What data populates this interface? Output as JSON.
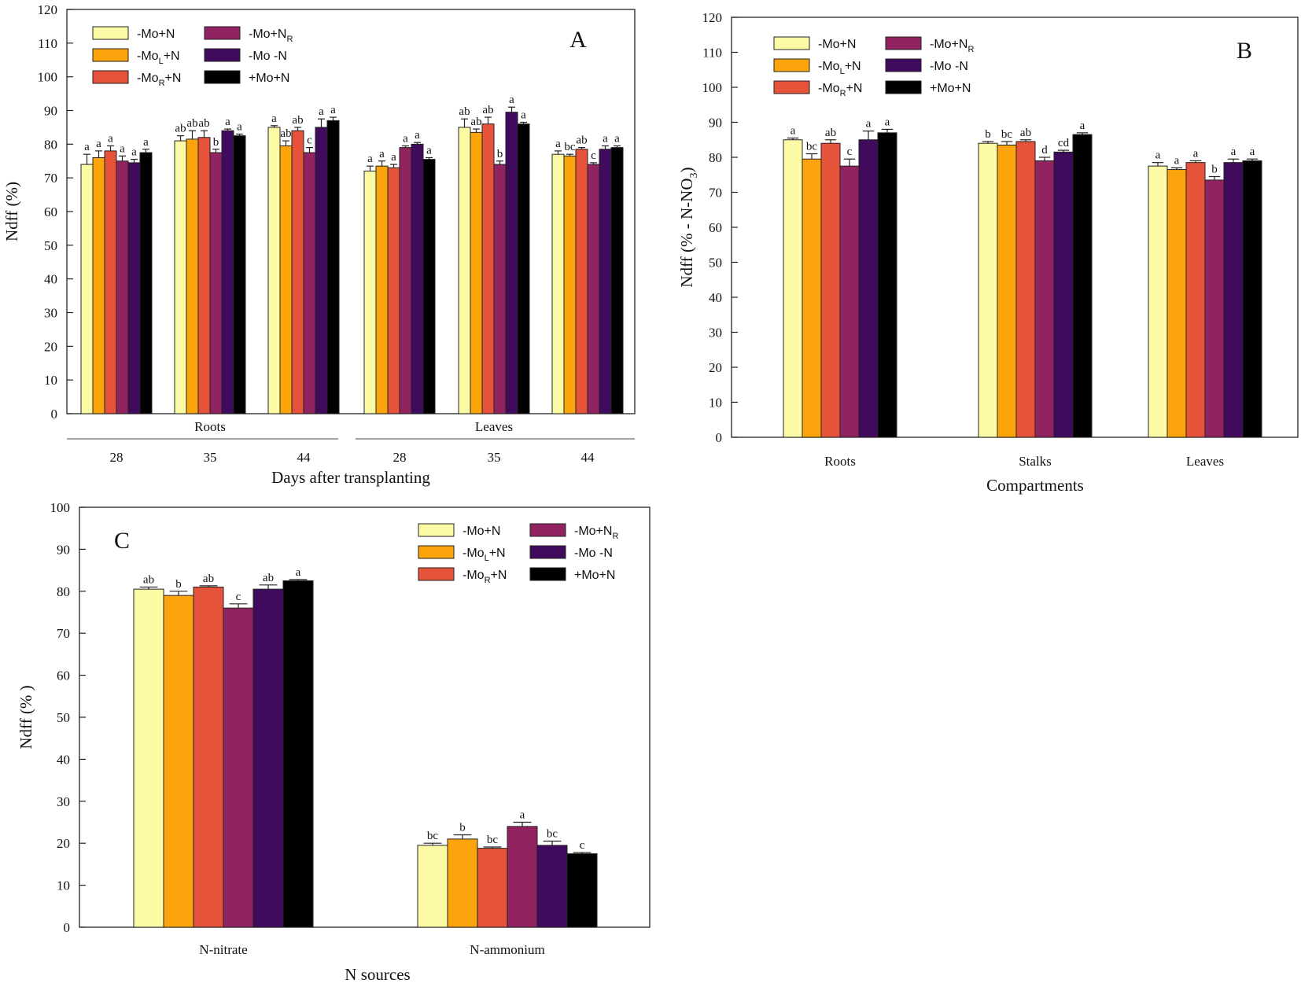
{
  "series_legend": [
    {
      "name": "-Mo+N",
      "base": "-Mo+N",
      "sub": "",
      "tail": "",
      "color": "#fdfaa6"
    },
    {
      "name": "-MoL+N",
      "base": "-Mo",
      "sub": "L",
      "tail": "+N",
      "color": "#fba40b"
    },
    {
      "name": "-MoR+N",
      "base": "-Mo",
      "sub": "R",
      "tail": "+N",
      "color": "#e4533a"
    },
    {
      "name": "-Mo+NR",
      "base": "-Mo+N",
      "sub": "R",
      "tail": "",
      "color": "#912361"
    },
    {
      "name": "-Mo -N",
      "base": "-Mo -N",
      "sub": "",
      "tail": "",
      "color": "#400a5d"
    },
    {
      "name": "+Mo+N",
      "base": "+Mo+N",
      "sub": "",
      "tail": "",
      "color": "#000000"
    }
  ],
  "chart_data": [
    {
      "panel": "A",
      "type": "bar",
      "xlabel": "Days after transplanting",
      "ylabel": "Ndff (%)",
      "ylim": [
        0,
        120
      ],
      "yticks": [
        0,
        10,
        20,
        30,
        40,
        50,
        60,
        70,
        80,
        90,
        100,
        110,
        120
      ],
      "outer_groups": [
        "Roots",
        "Leaves"
      ],
      "categories": [
        "28",
        "35",
        "44",
        "28",
        "35",
        "44"
      ],
      "series": [
        {
          "name": "-Mo+N",
          "values": [
            74,
            81,
            85,
            72,
            85,
            77
          ],
          "errors": [
            3,
            1.5,
            0.5,
            1.5,
            2.5,
            1
          ],
          "letters": [
            "a",
            "ab",
            "a",
            "a",
            "ab",
            "a"
          ]
        },
        {
          "name": "-MoL+N",
          "values": [
            76,
            81.5,
            79.5,
            73.5,
            83.5,
            76.5
          ],
          "errors": [
            2,
            2.5,
            1.5,
            1.5,
            1,
            0.5
          ],
          "letters": [
            "a",
            "ab",
            "ab",
            "a",
            "ab",
            "bc"
          ]
        },
        {
          "name": "-MoR+N",
          "values": [
            78,
            82,
            84,
            73,
            86,
            78.5
          ],
          "errors": [
            1.5,
            2,
            1,
            1,
            2,
            0.5
          ],
          "letters": [
            "a",
            "ab",
            "ab",
            "a",
            "ab",
            "ab"
          ]
        },
        {
          "name": "-Mo+NR",
          "values": [
            75,
            77.5,
            77.5,
            79,
            74,
            74
          ],
          "errors": [
            1.5,
            1,
            1.5,
            0.5,
            1,
            0.5
          ],
          "letters": [
            "a",
            "b",
            "c",
            "a",
            "b",
            "c"
          ]
        },
        {
          "name": "-Mo -N",
          "values": [
            74.5,
            84,
            85,
            80,
            89.5,
            78.5
          ],
          "errors": [
            1,
            0.5,
            2.5,
            0.5,
            1.5,
            1
          ],
          "letters": [
            "a",
            "a",
            "a",
            "a",
            "a",
            "a"
          ]
        },
        {
          "name": "+Mo+N",
          "values": [
            77.5,
            82.5,
            87,
            75.5,
            86,
            79
          ],
          "errors": [
            1,
            0.5,
            1,
            0.5,
            0.5,
            0.5
          ],
          "letters": [
            "a",
            "a",
            "a",
            "a",
            "a",
            "a"
          ]
        }
      ],
      "label": "A"
    },
    {
      "panel": "B",
      "type": "bar",
      "xlabel": "Compartments",
      "ylabel_main": "Ndff (% - N-NO",
      "ylabel_sub": "3",
      "ylabel_end": ")",
      "ylim": [
        0,
        120
      ],
      "yticks": [
        0,
        10,
        20,
        30,
        40,
        50,
        60,
        70,
        80,
        90,
        100,
        110,
        120
      ],
      "categories": [
        "Roots",
        "Stalks",
        "Leaves"
      ],
      "series": [
        {
          "name": "-Mo+N",
          "values": [
            85,
            84,
            77.5
          ],
          "errors": [
            0.5,
            0.5,
            1
          ],
          "letters": [
            "a",
            "b",
            "a"
          ]
        },
        {
          "name": "-MoL+N",
          "values": [
            79.5,
            83.5,
            76.5
          ],
          "errors": [
            1.5,
            1,
            0.5
          ],
          "letters": [
            "bc",
            "bc",
            "a"
          ]
        },
        {
          "name": "-MoR+N",
          "values": [
            84,
            84.5,
            78.5
          ],
          "errors": [
            1,
            0.5,
            0.5
          ],
          "letters": [
            "ab",
            "ab",
            "a"
          ]
        },
        {
          "name": "-Mo+NR",
          "values": [
            77.5,
            79,
            73.5
          ],
          "errors": [
            2,
            1,
            1
          ],
          "letters": [
            "c",
            "d",
            "b"
          ]
        },
        {
          "name": "-Mo -N",
          "values": [
            85,
            81.5,
            78.5
          ],
          "errors": [
            2.5,
            0.5,
            1
          ],
          "letters": [
            "a",
            "cd",
            "a"
          ]
        },
        {
          "name": "+Mo+N",
          "values": [
            87,
            86.5,
            79
          ],
          "errors": [
            1,
            0.5,
            0.5
          ],
          "letters": [
            "a",
            "a",
            "a"
          ]
        }
      ],
      "label": "B"
    },
    {
      "panel": "C",
      "type": "bar",
      "xlabel": "N sources",
      "ylabel": "Ndff (% )",
      "ylim": [
        0,
        100
      ],
      "yticks": [
        0,
        10,
        20,
        30,
        40,
        50,
        60,
        70,
        80,
        90,
        100
      ],
      "categories": [
        "N-nitrate",
        "N-ammonium"
      ],
      "series": [
        {
          "name": "-Mo+N",
          "values": [
            80.5,
            19.5
          ],
          "errors": [
            0.5,
            0.5
          ],
          "letters": [
            "ab",
            "bc"
          ]
        },
        {
          "name": "-MoL+N",
          "values": [
            79,
            21
          ],
          "errors": [
            1,
            1
          ],
          "letters": [
            "b",
            "b"
          ]
        },
        {
          "name": "-MoR+N",
          "values": [
            81,
            18.8
          ],
          "errors": [
            0.3,
            0.3
          ],
          "letters": [
            "ab",
            "bc"
          ]
        },
        {
          "name": "-Mo+NR",
          "values": [
            76,
            24
          ],
          "errors": [
            1,
            1
          ],
          "letters": [
            "c",
            "a"
          ]
        },
        {
          "name": "-Mo -N",
          "values": [
            80.5,
            19.5
          ],
          "errors": [
            1,
            1
          ],
          "letters": [
            "ab",
            "bc"
          ]
        },
        {
          "name": "+Mo+N",
          "values": [
            82.5,
            17.5
          ],
          "errors": [
            0.3,
            0.3
          ],
          "letters": [
            "a",
            "c"
          ]
        }
      ],
      "label": "C"
    }
  ]
}
